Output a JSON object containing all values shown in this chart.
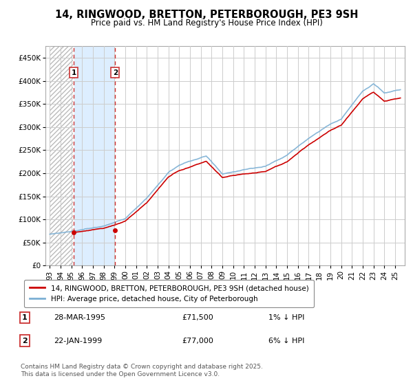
{
  "title": "14, RINGWOOD, BRETTON, PETERBOROUGH, PE3 9SH",
  "subtitle": "Price paid vs. HM Land Registry's House Price Index (HPI)",
  "legend_line1": "14, RINGWOOD, BRETTON, PETERBOROUGH, PE3 9SH (detached house)",
  "legend_line2": "HPI: Average price, detached house, City of Peterborough",
  "table_rows": [
    {
      "num": "1",
      "date": "28-MAR-1995",
      "price": "£71,500",
      "hpi": "1% ↓ HPI"
    },
    {
      "num": "2",
      "date": "22-JAN-1999",
      "price": "£77,000",
      "hpi": "6% ↓ HPI"
    }
  ],
  "footer": "Contains HM Land Registry data © Crown copyright and database right 2025.\nThis data is licensed under the Open Government Licence v3.0.",
  "purchase1_year": 1995.23,
  "purchase1_price": 71500,
  "purchase2_year": 1999.06,
  "purchase2_price": 77000,
  "ylim": [
    0,
    475000
  ],
  "yticks": [
    0,
    50000,
    100000,
    150000,
    200000,
    250000,
    300000,
    350000,
    400000,
    450000
  ],
  "hpi_color": "#7bafd4",
  "price_color": "#cc0000",
  "vline_color": "#cc3333",
  "between_fill_color": "#ddeeff",
  "grid_color": "#cccccc",
  "bg_color": "#ffffff"
}
